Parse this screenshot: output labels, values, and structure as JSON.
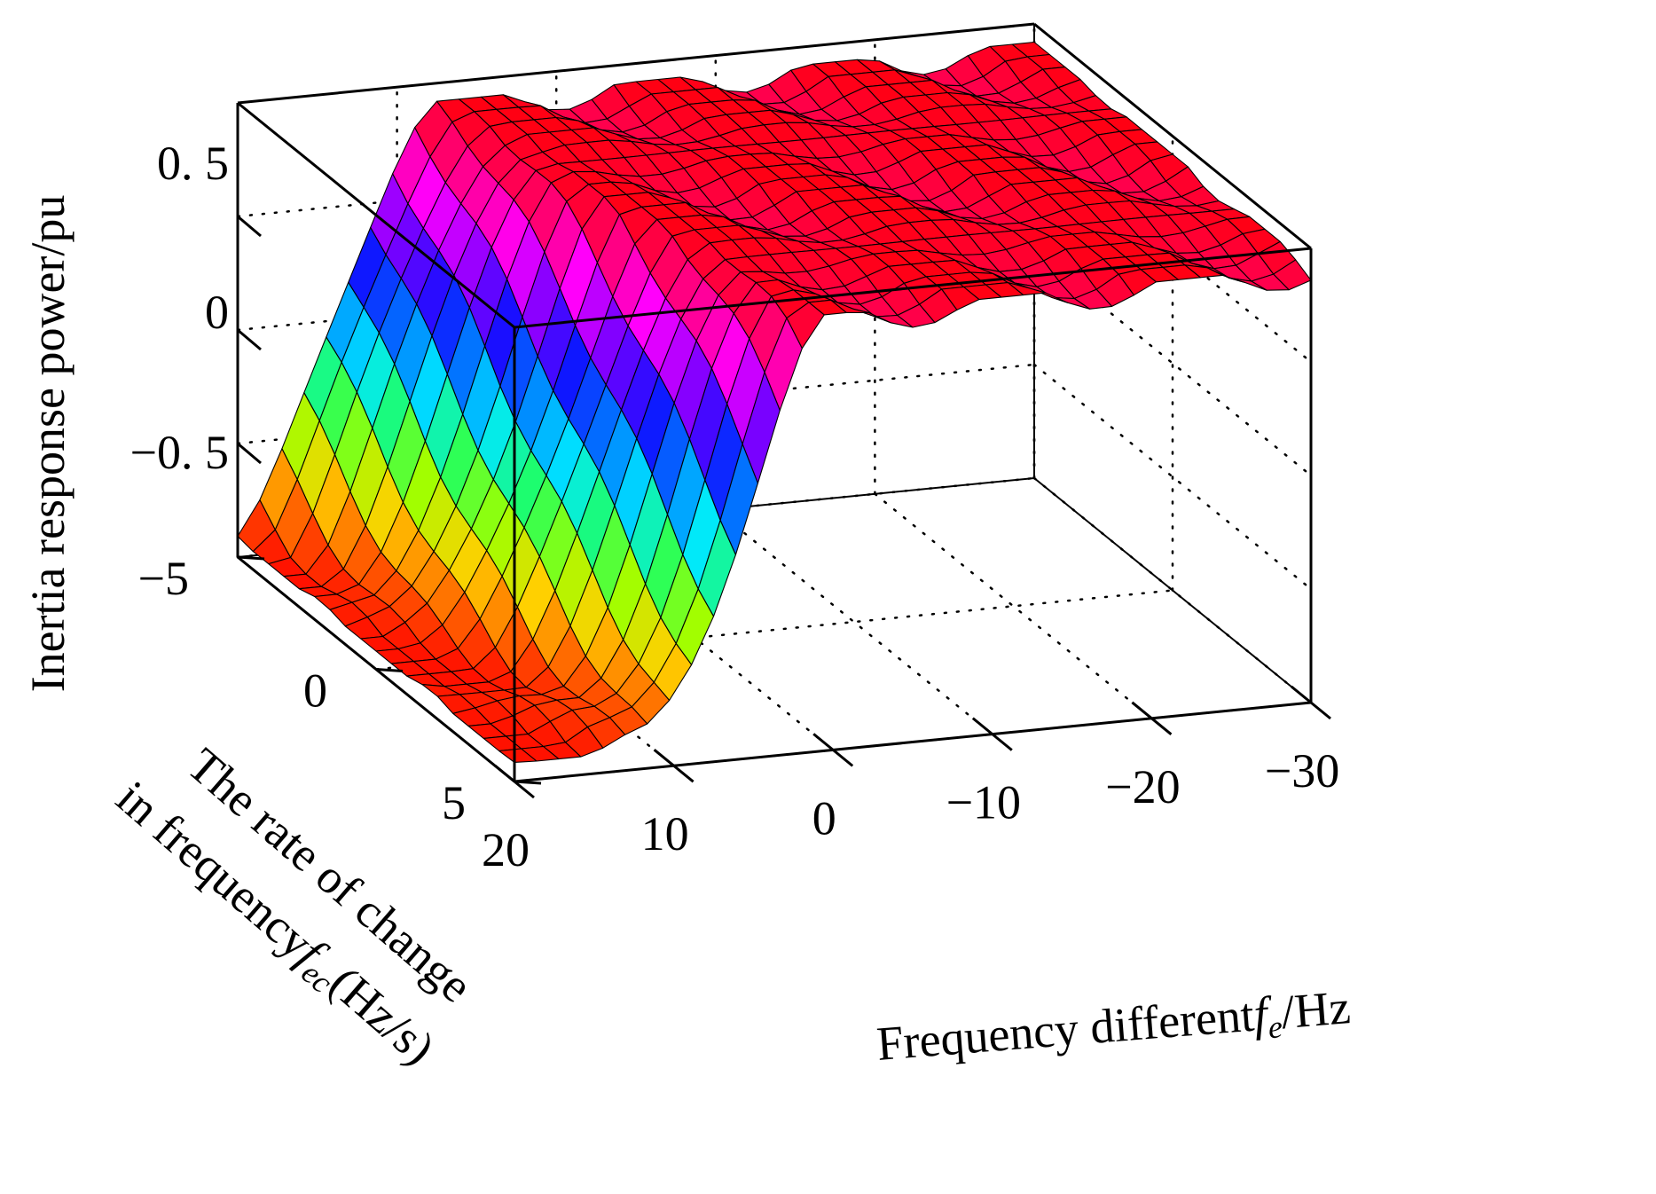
{
  "chart_data": {
    "type": "surface3d",
    "title": "",
    "zlabel": "Inertia response power/pu",
    "xlabel": {
      "main": "Frequency different",
      "symbol": "f",
      "subscript": "e",
      "unit": "/Hz"
    },
    "ylabel": {
      "line1": "The rate of change",
      "line2_main": "in frequency",
      "symbol": "f",
      "subscript": "ec",
      "unit": "(Hz/s)"
    },
    "x_range": [
      -30,
      20
    ],
    "y_range": [
      -5,
      5
    ],
    "z_range": [
      -1,
      1
    ],
    "x_ticks": [
      {
        "value": 20,
        "label": "20"
      },
      {
        "value": 10,
        "label": "10"
      },
      {
        "value": 0,
        "label": "0"
      },
      {
        "value": -10,
        "label": "−10"
      },
      {
        "value": -20,
        "label": "−20"
      },
      {
        "value": -30,
        "label": "−30"
      }
    ],
    "y_ticks": [
      {
        "value": -5,
        "label": "−5"
      },
      {
        "value": 0,
        "label": "0"
      },
      {
        "value": 5,
        "label": "5"
      }
    ],
    "z_ticks": [
      {
        "value": 0.5,
        "label": "0. 5"
      },
      {
        "value": 0,
        "label": "0"
      },
      {
        "value": -0.5,
        "label": "−0. 5"
      }
    ],
    "colormap": [
      "#ff0000",
      "#ff6000",
      "#ffd000",
      "#a0ff00",
      "#20ff60",
      "#00e8ff",
      "#0080ff",
      "#1010ff",
      "#8000ff",
      "#ff00ff",
      "#ff0070",
      "#ff0000"
    ],
    "grid": true,
    "box": true,
    "grid_x_count": 36,
    "grid_y_count": 18,
    "surface_description": "High (~0.9) for fe below about -3 Hz, low (~-0.9) for fe above about 12 Hz, with a transition region sloping across fec."
  }
}
